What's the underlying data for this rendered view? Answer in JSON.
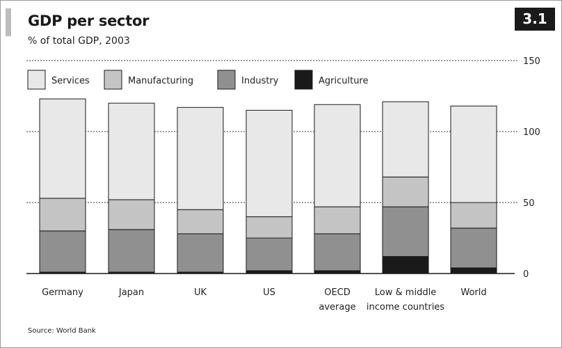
{
  "header": {
    "title": "GDP per sector",
    "subtitle": "% of total GDP, 2003",
    "badge": "3.1"
  },
  "footer": {
    "source": "Source: World Bank"
  },
  "colors": {
    "services": "#e8e8e8",
    "manufacturing": "#c4c4c4",
    "industry": "#909090",
    "agriculture": "#1a1a1a",
    "grid": "#333333",
    "bar_stroke": "#1a1a1a"
  },
  "chart_data": {
    "type": "bar",
    "stacked": true,
    "title": "GDP per sector",
    "subtitle": "% of total GDP, 2003",
    "ylim": [
      0,
      150
    ],
    "yticks": [
      0,
      50,
      100,
      150
    ],
    "y_axis_side": "right",
    "grid": "dotted at 50, 100, 150",
    "legend_position": "top-left",
    "categories": [
      [
        "Germany"
      ],
      [
        "Japan"
      ],
      [
        "UK"
      ],
      [
        "US"
      ],
      [
        "OECD",
        "average"
      ],
      [
        "Low & middle",
        "income countries"
      ],
      [
        "World"
      ]
    ],
    "series": [
      {
        "name": "Agriculture",
        "color_key": "agriculture",
        "values": [
          1,
          1,
          1,
          2,
          2,
          12,
          4
        ]
      },
      {
        "name": "Industry",
        "color_key": "industry",
        "values": [
          29,
          30,
          27,
          23,
          26,
          35,
          28
        ]
      },
      {
        "name": "Manufacturing",
        "color_key": "manufacturing",
        "values": [
          23,
          21,
          17,
          15,
          19,
          21,
          18
        ]
      },
      {
        "name": "Services",
        "color_key": "services",
        "values": [
          70,
          68,
          72,
          75,
          72,
          53,
          68
        ]
      }
    ],
    "legend_order": [
      "Services",
      "Manufacturing",
      "Industry",
      "Agriculture"
    ]
  }
}
